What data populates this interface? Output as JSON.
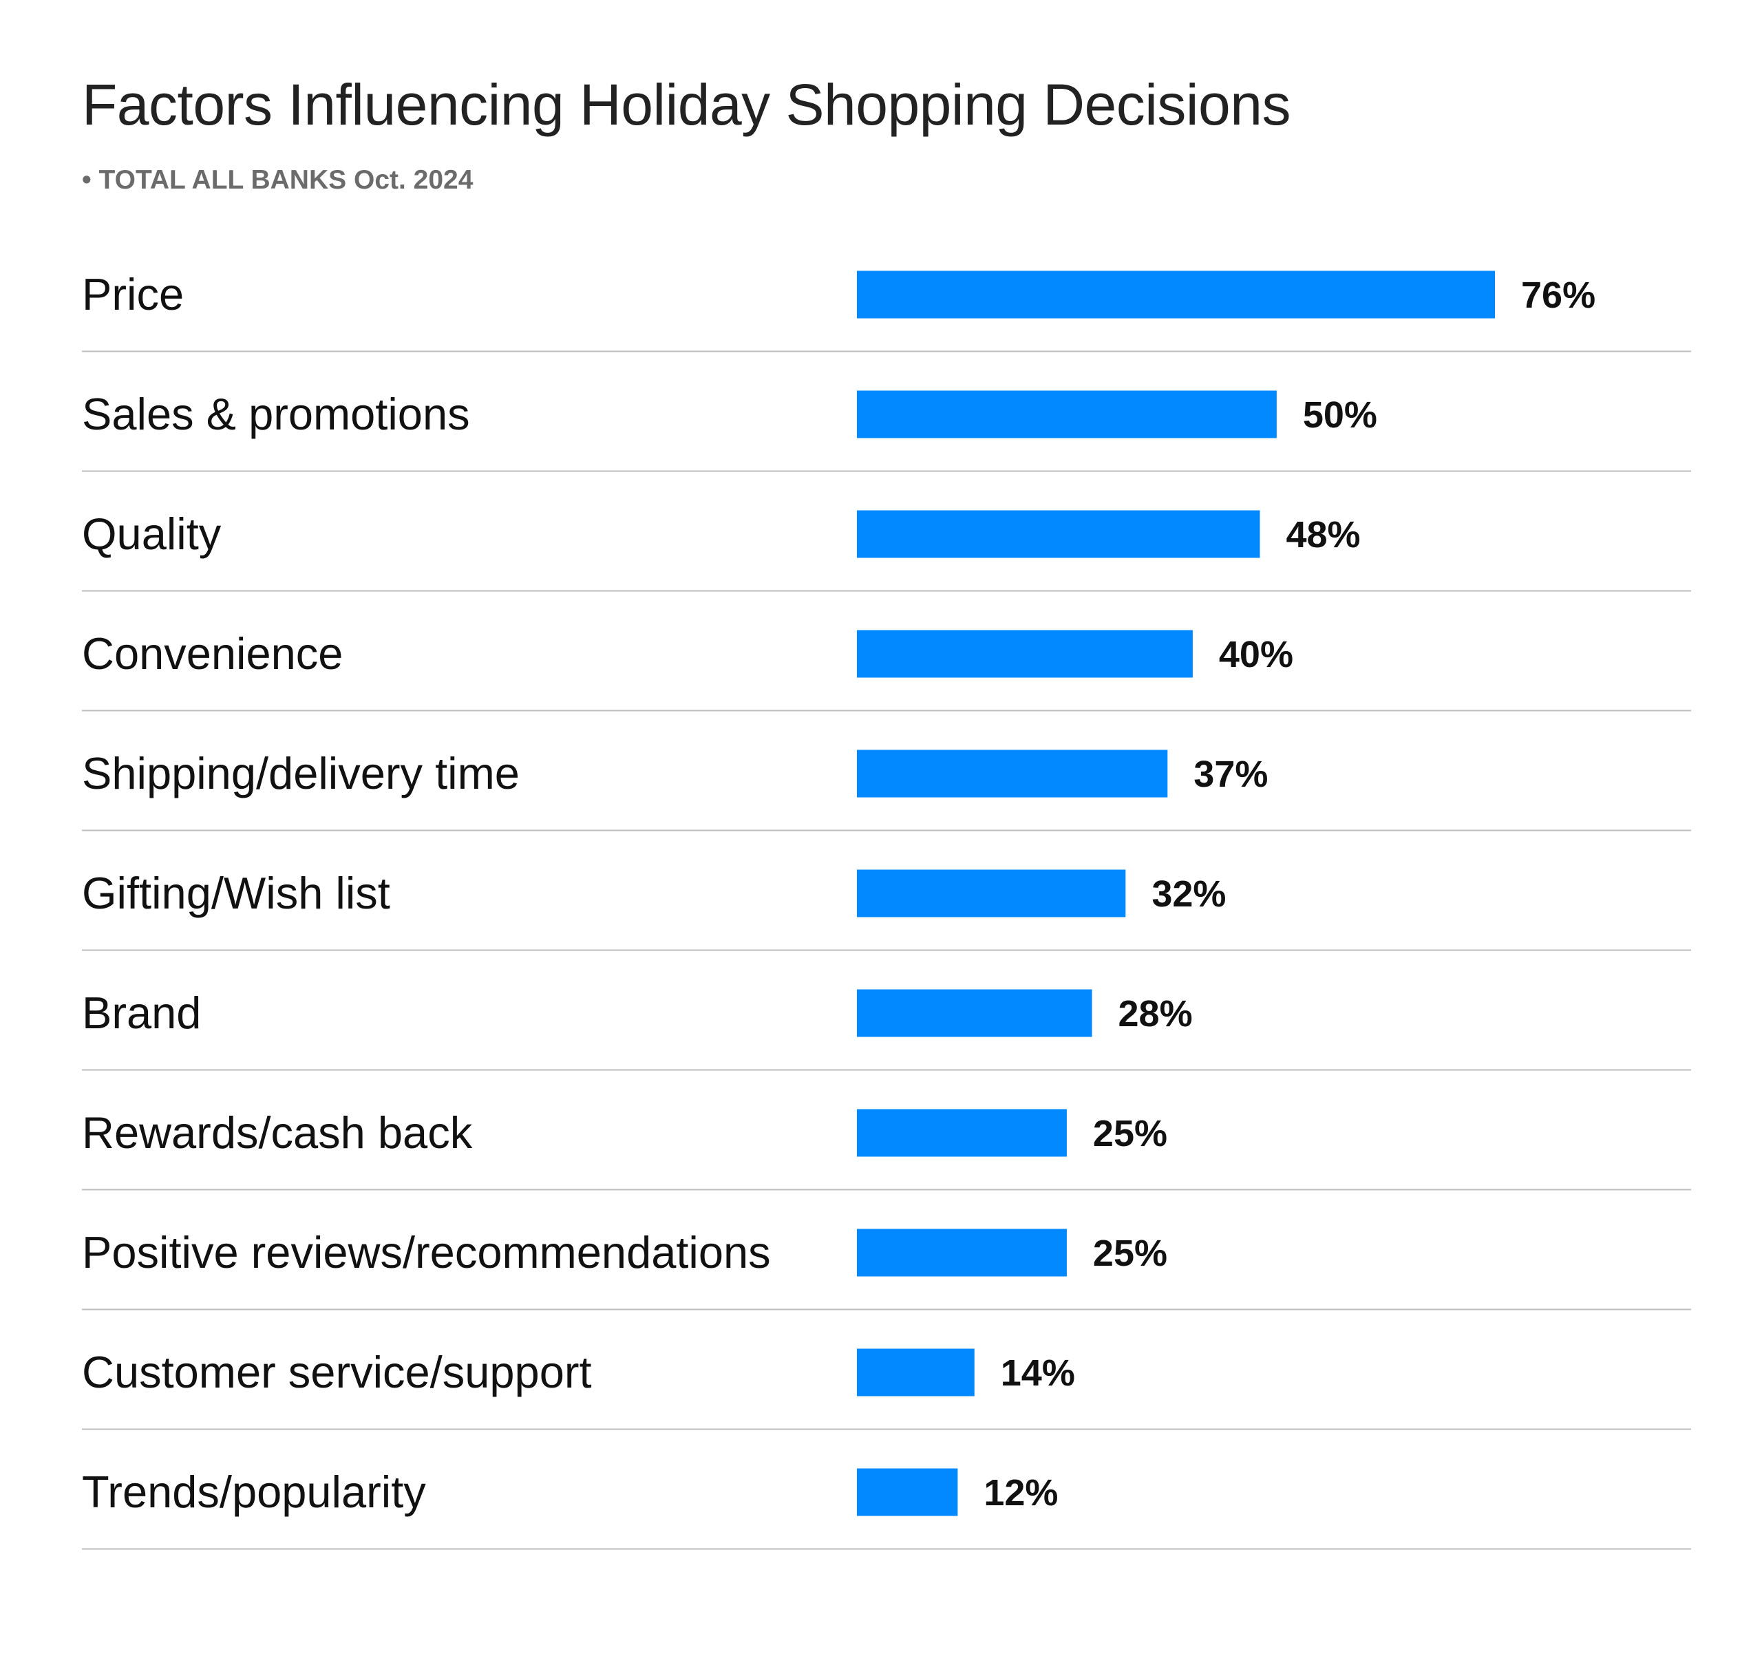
{
  "colors": {
    "bar": "#0288FF",
    "divider": "#bdbdbd",
    "title": "#222222",
    "subtitle": "#6b6b6b",
    "text": "#111111"
  },
  "chart_data": {
    "type": "bar",
    "orientation": "horizontal",
    "title": "Factors Influencing Holiday Shopping Decisions",
    "subtitle": "• TOTAL ALL BANKS Oct. 2024",
    "value_suffix": "%",
    "grid": false,
    "categories": [
      "Price",
      "Sales & promotions",
      "Quality",
      "Convenience",
      "Shipping/delivery time",
      "Gifting/Wish list",
      "Brand",
      "Rewards/cash back",
      "Positive reviews/recommendations",
      "Customer service/support",
      "Trends/popularity"
    ],
    "values": [
      76,
      50,
      48,
      40,
      37,
      32,
      28,
      25,
      25,
      14,
      12
    ],
    "value_labels": [
      "76%",
      "50%",
      "48%",
      "40%",
      "37%",
      "32%",
      "28%",
      "25%",
      "25%",
      "14%",
      "12%"
    ]
  }
}
